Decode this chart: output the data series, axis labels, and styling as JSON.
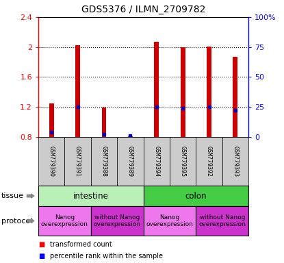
{
  "title": "GDS5376 / ILMN_2709782",
  "samples": [
    "GSM779390",
    "GSM779391",
    "GSM779388",
    "GSM779389",
    "GSM779394",
    "GSM779395",
    "GSM779392",
    "GSM779393"
  ],
  "transformed_counts": [
    1.25,
    2.02,
    1.19,
    0.81,
    2.07,
    2.0,
    2.01,
    1.87
  ],
  "percentile_ranks_pct": [
    4,
    25,
    2,
    1,
    25,
    24,
    25,
    22
  ],
  "ylim_left": [
    0.8,
    2.4
  ],
  "ylim_right": [
    0,
    100
  ],
  "yticks_left": [
    0.8,
    1.2,
    1.6,
    2.0,
    2.4
  ],
  "yticks_right": [
    0,
    25,
    50,
    75,
    100
  ],
  "ytick_labels_left": [
    "0.8",
    "1.2",
    "1.6",
    "2",
    "2.4"
  ],
  "ytick_labels_right": [
    "0",
    "25",
    "50",
    "75",
    "100%"
  ],
  "tissue_groups": [
    {
      "label": "intestine",
      "start": 0,
      "end": 4,
      "color": "#b8f0b8"
    },
    {
      "label": "colon",
      "start": 4,
      "end": 8,
      "color": "#44cc44"
    }
  ],
  "protocol_groups": [
    {
      "label": "Nanog\noverexpression",
      "start": 0,
      "end": 2,
      "color": "#ee77ee"
    },
    {
      "label": "without Nanog\noverexpression",
      "start": 2,
      "end": 4,
      "color": "#cc33cc"
    },
    {
      "label": "Nanog\noverexpression",
      "start": 4,
      "end": 6,
      "color": "#ee77ee"
    },
    {
      "label": "without Nanog\noverexpression",
      "start": 6,
      "end": 8,
      "color": "#cc33cc"
    }
  ],
  "bar_color": "#cc0000",
  "dot_color": "#0000bb",
  "sample_box_color": "#cccccc",
  "bar_width": 0.18
}
